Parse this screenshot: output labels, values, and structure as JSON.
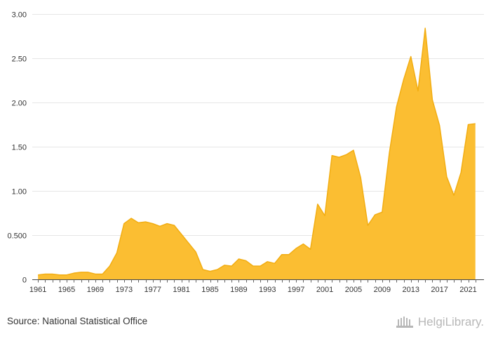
{
  "chart_data": {
    "type": "area",
    "title": "",
    "xlabel": "",
    "ylabel": "",
    "xlim": [
      1961,
      2022
    ],
    "ylim": [
      0,
      3.0
    ],
    "y_ticks": [
      0,
      0.5,
      1.0,
      1.5,
      2.0,
      2.5,
      3.0
    ],
    "y_tick_labels": [
      "0",
      "0.500",
      "1.00",
      "1.50",
      "2.00",
      "2.50",
      "3.00"
    ],
    "x_ticks": [
      1961,
      1965,
      1969,
      1973,
      1977,
      1981,
      1985,
      1989,
      1993,
      1997,
      2001,
      2005,
      2009,
      2013,
      2017,
      2021
    ],
    "x_tick_labels": [
      "1961",
      "1965",
      "1969",
      "1973",
      "1977",
      "1981",
      "1985",
      "1989",
      "1993",
      "1997",
      "2001",
      "2005",
      "2009",
      "2013",
      "2017",
      "2021"
    ],
    "grid": true,
    "legend": "none",
    "fill_color": "#fbbe32",
    "line_color": "#f2ad12",
    "x": [
      1961,
      1962,
      1963,
      1964,
      1965,
      1966,
      1967,
      1968,
      1969,
      1970,
      1971,
      1972,
      1973,
      1974,
      1975,
      1976,
      1977,
      1978,
      1979,
      1980,
      1981,
      1982,
      1983,
      1984,
      1985,
      1986,
      1987,
      1988,
      1989,
      1990,
      1991,
      1992,
      1993,
      1994,
      1995,
      1996,
      1997,
      1998,
      1999,
      2000,
      2001,
      2002,
      2003,
      2004,
      2005,
      2006,
      2007,
      2008,
      2009,
      2010,
      2011,
      2012,
      2013,
      2014,
      2015,
      2016,
      2017,
      2018,
      2019,
      2020,
      2021,
      2022
    ],
    "values": [
      0.05,
      0.06,
      0.06,
      0.05,
      0.05,
      0.07,
      0.08,
      0.08,
      0.06,
      0.06,
      0.15,
      0.3,
      0.63,
      0.69,
      0.64,
      0.65,
      0.63,
      0.6,
      0.63,
      0.61,
      0.51,
      0.41,
      0.31,
      0.11,
      0.09,
      0.11,
      0.16,
      0.15,
      0.23,
      0.21,
      0.15,
      0.15,
      0.2,
      0.18,
      0.28,
      0.28,
      0.35,
      0.4,
      0.34,
      0.85,
      0.72,
      1.4,
      1.38,
      1.41,
      1.46,
      1.15,
      0.61,
      0.73,
      0.76,
      1.43,
      1.95,
      2.26,
      2.52,
      2.13,
      2.84,
      2.03,
      1.74,
      1.16,
      0.95,
      1.21,
      1.75,
      1.76
    ]
  },
  "footer": {
    "source": "Source: National Statistical Office",
    "logo_text": "HelgiLibrary."
  }
}
